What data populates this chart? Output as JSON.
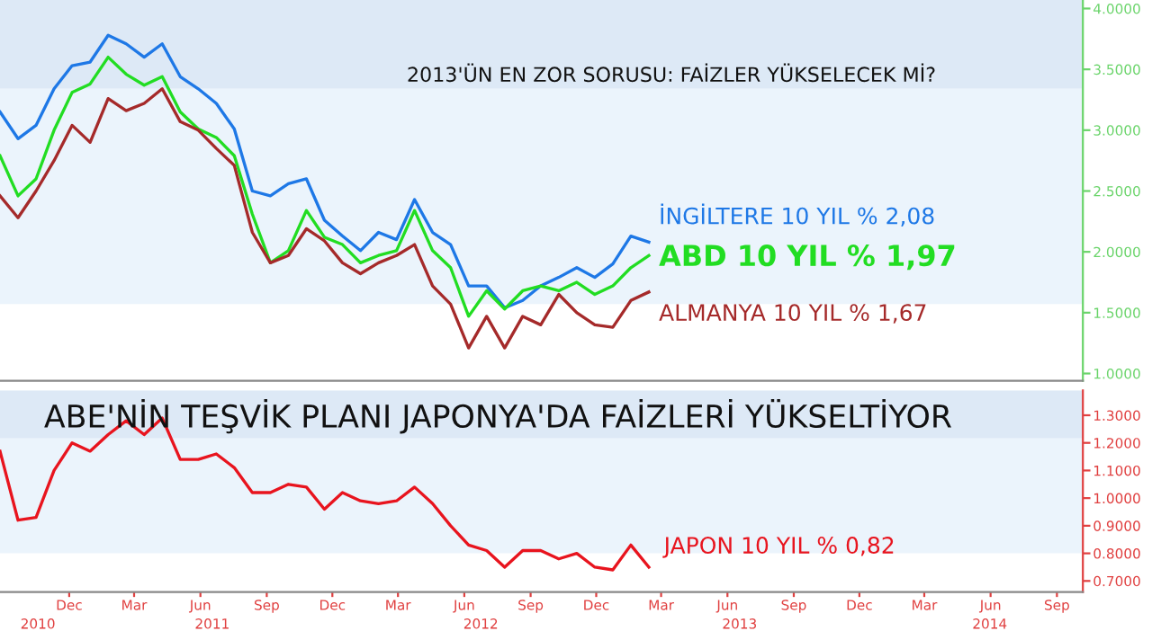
{
  "chart_data": [
    {
      "type": "line",
      "title": "2013'ÜN EN ZOR SORUSU: FAİZLER YÜKSELECEK Mİ?",
      "x": [
        "2010-08-27",
        "2010-09-21",
        "2010-10-16",
        "2010-11-10",
        "2010-12-05",
        "2010-12-30",
        "2011-01-24",
        "2011-02-18",
        "2011-03-15",
        "2011-04-09",
        "2011-05-04",
        "2011-05-29",
        "2011-06-23",
        "2011-07-18",
        "2011-08-12",
        "2011-09-06",
        "2011-10-01",
        "2011-10-26",
        "2011-11-20",
        "2011-12-15",
        "2012-01-09",
        "2012-02-03",
        "2012-02-28",
        "2012-03-24",
        "2012-04-18",
        "2012-05-13",
        "2012-06-07",
        "2012-07-02",
        "2012-07-27",
        "2012-08-21",
        "2012-09-15",
        "2012-10-10",
        "2012-11-04",
        "2012-11-29",
        "2012-12-24",
        "2013-01-18",
        "2013-02-12"
      ],
      "series": [
        {
          "name": "İNGİLTERE 10 YIL % 2,08",
          "color": "#1e78e6",
          "values": [
            3.15,
            2.93,
            3.04,
            3.34,
            3.53,
            3.56,
            3.78,
            3.71,
            3.6,
            3.71,
            3.44,
            3.34,
            3.22,
            3.01,
            2.5,
            2.46,
            2.56,
            2.6,
            2.26,
            2.13,
            2.01,
            2.16,
            2.1,
            2.43,
            2.16,
            2.06,
            1.72,
            1.72,
            1.54,
            1.6,
            1.72,
            1.79,
            1.87,
            1.79,
            1.9,
            2.13,
            2.08
          ]
        },
        {
          "name": "ABD 10 YIL % 1,97",
          "color": "#22dd22",
          "values": [
            2.79,
            2.46,
            2.6,
            3.0,
            3.31,
            3.38,
            3.6,
            3.46,
            3.37,
            3.44,
            3.15,
            3.01,
            2.94,
            2.79,
            2.31,
            1.91,
            2.01,
            2.34,
            2.12,
            2.06,
            1.91,
            1.97,
            2.01,
            2.34,
            2.01,
            1.87,
            1.47,
            1.68,
            1.53,
            1.68,
            1.72,
            1.68,
            1.75,
            1.65,
            1.72,
            1.87,
            1.97
          ]
        },
        {
          "name": "ALMANYA 10 YIL % 1,67",
          "color": "#a52a2a",
          "values": [
            2.46,
            2.28,
            2.5,
            2.75,
            3.04,
            2.9,
            3.26,
            3.16,
            3.22,
            3.34,
            3.07,
            3.0,
            2.85,
            2.71,
            2.16,
            1.91,
            1.97,
            2.19,
            2.09,
            1.91,
            1.82,
            1.91,
            1.97,
            2.06,
            1.72,
            1.57,
            1.21,
            1.47,
            1.21,
            1.47,
            1.4,
            1.65,
            1.5,
            1.4,
            1.38,
            1.6,
            1.67
          ]
        }
      ],
      "xlim": [
        "2010-08-27",
        "2014-10-07"
      ],
      "ylim": [
        0.94,
        4.07
      ],
      "yticks": [
        {
          "value": 1.0,
          "label": "1.0000"
        },
        {
          "value": 1.5,
          "label": "1.5000"
        },
        {
          "value": 2.0,
          "label": "2.0000"
        },
        {
          "value": 2.5,
          "label": "2.5000"
        },
        {
          "value": 3.0,
          "label": "3.0000"
        },
        {
          "value": 3.5,
          "label": "3.5000"
        },
        {
          "value": 4.0,
          "label": "4.0000"
        }
      ],
      "bands": [
        {
          "axis": "y",
          "from": 3.34,
          "to": 4.07,
          "color": "#dde9f6"
        },
        {
          "axis": "y",
          "from": 1.57,
          "to": 3.34,
          "color": "#ebf4fc"
        }
      ],
      "tick_labels": "y",
      "grid": false,
      "legend": false,
      "marker": "none",
      "line_style": "solid"
    },
    {
      "type": "line",
      "title": "ABE'NİN TEŞVİK PLANI JAPONYA'DA FAİZLERİ YÜKSELTİYOR",
      "x": [
        "2010-08-27",
        "2010-09-21",
        "2010-10-16",
        "2010-11-10",
        "2010-12-05",
        "2010-12-30",
        "2011-01-24",
        "2011-02-18",
        "2011-03-15",
        "2011-04-09",
        "2011-05-04",
        "2011-05-29",
        "2011-06-23",
        "2011-07-18",
        "2011-08-12",
        "2011-09-06",
        "2011-10-01",
        "2011-10-26",
        "2011-11-20",
        "2011-12-15",
        "2012-01-09",
        "2012-02-03",
        "2012-02-28",
        "2012-03-24",
        "2012-04-18",
        "2012-05-13",
        "2012-06-07",
        "2012-07-02",
        "2012-07-27",
        "2012-08-21",
        "2012-09-15",
        "2012-10-10",
        "2012-11-04",
        "2012-11-29",
        "2012-12-24",
        "2013-01-18",
        "2013-02-12"
      ],
      "series": [
        {
          "name": "JAPON 10 YIL % 0,82",
          "color": "#e8141e",
          "values": [
            1.17,
            0.92,
            0.93,
            1.1,
            1.2,
            1.17,
            1.23,
            1.28,
            1.23,
            1.29,
            1.14,
            1.14,
            1.16,
            1.11,
            1.02,
            1.02,
            1.05,
            1.04,
            0.96,
            1.02,
            0.99,
            0.98,
            0.99,
            1.04,
            0.98,
            0.9,
            0.83,
            0.81,
            0.75,
            0.81,
            0.81,
            0.78,
            0.8,
            0.75,
            0.74,
            0.83,
            0.75
          ]
        }
      ],
      "xlim": [
        "2010-08-27",
        "2014-10-07"
      ],
      "ylim": [
        0.66,
        1.39
      ],
      "xticks": [
        {
          "value": "2010-12-01",
          "label": "Dec"
        },
        {
          "value": "2011-03-01",
          "label": "Mar"
        },
        {
          "value": "2011-06-01",
          "label": "Jun"
        },
        {
          "value": "2011-09-01",
          "label": "Sep"
        },
        {
          "value": "2011-12-01",
          "label": "Dec"
        },
        {
          "value": "2012-03-01",
          "label": "Mar"
        },
        {
          "value": "2012-06-01",
          "label": "Jun"
        },
        {
          "value": "2012-09-01",
          "label": "Sep"
        },
        {
          "value": "2012-12-01",
          "label": "Dec"
        },
        {
          "value": "2013-03-01",
          "label": "Mar"
        },
        {
          "value": "2013-06-01",
          "label": "Jun"
        },
        {
          "value": "2013-09-01",
          "label": "Sep"
        },
        {
          "value": "2013-12-01",
          "label": "Dec"
        },
        {
          "value": "2014-03-01",
          "label": "Mar"
        },
        {
          "value": "2014-06-01",
          "label": "Jun"
        },
        {
          "value": "2014-09-01",
          "label": "Sep"
        }
      ],
      "annotations": [
        "2010",
        "2011",
        "2012",
        "2013",
        "2014"
      ],
      "yticks": [
        {
          "value": 0.7,
          "label": "0.7000"
        },
        {
          "value": 0.8,
          "label": "0.8000"
        },
        {
          "value": 0.9,
          "label": "0.9000"
        },
        {
          "value": 1.0,
          "label": "1.0000"
        },
        {
          "value": 1.1,
          "label": "1.1000"
        },
        {
          "value": 1.2,
          "label": "1.2000"
        },
        {
          "value": 1.3,
          "label": "1.3000"
        }
      ],
      "bands": [
        {
          "axis": "y",
          "from": 1.216,
          "to": 1.39,
          "color": "#dde9f6"
        },
        {
          "axis": "y",
          "from": 0.8,
          "to": 1.216,
          "color": "#ebf4fc"
        }
      ],
      "grid": false,
      "legend": false,
      "marker": "none",
      "line_style": "solid"
    }
  ]
}
